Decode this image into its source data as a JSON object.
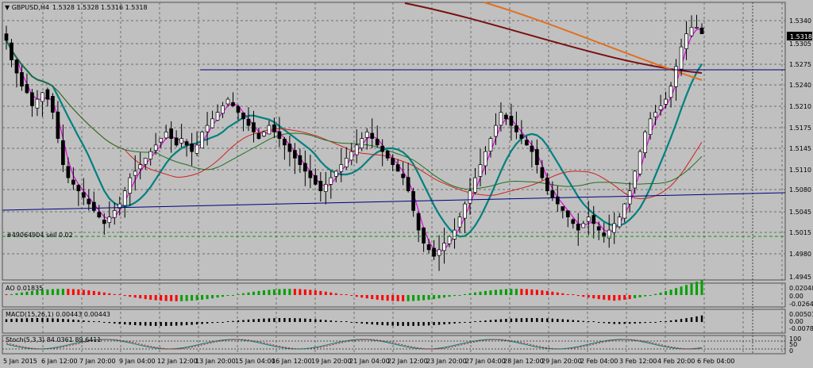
{
  "header": {
    "symbol_label": "GBPUSD,H4",
    "ohlc": "1.5328 1.5328 1.5316 1.5318"
  },
  "order_label": "#49064904 sell 0.02",
  "price_badge": "1.5318",
  "price_axis": [
    "1.5340",
    "1.5305",
    "1.5275",
    "1.5240",
    "1.5210",
    "1.5175",
    "1.5145",
    "1.5110",
    "1.5080",
    "1.5045",
    "1.5015",
    "1.4980",
    "1.4945"
  ],
  "ao": {
    "label": "AO 0.01835",
    "axis": [
      "0.02048",
      "0.00",
      "-0.02641"
    ]
  },
  "macd": {
    "label": "MACD(15,26,1) 0.00443 0.00443",
    "axis": [
      "0.00501",
      "0.00",
      "-0.00786"
    ]
  },
  "stoch": {
    "label": "Stoch(5,3,3) 84.0361 89.6411",
    "axis": [
      "100",
      "50",
      "0"
    ]
  },
  "time_axis": [
    "5 Jan 2015",
    "6 Jan 12:00",
    "7 Jan 20:00",
    "9 Jan 04:00",
    "12 Jan 12:00",
    "13 Jan 20:00",
    "15 Jan 04:00",
    "16 Jan 12:00",
    "19 Jan 20:00",
    "21 Jan 04:00",
    "22 Jan 12:00",
    "23 Jan 20:00",
    "27 Jan 04:00",
    "28 Jan 12:00",
    "29 Jan 20:00",
    "2 Feb 04:00",
    "3 Feb 12:00",
    "4 Feb 20:00",
    "6 Feb 04:00"
  ],
  "colors": {
    "background": "#c0c0c0",
    "grid": "#6e6e6e",
    "bull": "#ffffff",
    "bear": "#000000",
    "ma_fast": "#e600e6",
    "ma_teal": "#008080",
    "ma_red": "#d22020",
    "ma_green": "#207020",
    "ma_brown": "#7a0f0f",
    "ma_orange": "#e07020",
    "trend_line": "#000080",
    "ao_up": "#00a000",
    "ao_down": "#ff0000"
  },
  "chart_data": {
    "type": "candlestick",
    "price_range": [
      1.4945,
      1.5345
    ],
    "closes": [
      1.531,
      1.528,
      1.526,
      1.524,
      1.523,
      1.521,
      1.522,
      1.523,
      1.522,
      1.52,
      1.516,
      1.512,
      1.51,
      1.509,
      1.508,
      1.507,
      1.506,
      1.505,
      1.504,
      1.503,
      1.504,
      1.505,
      1.506,
      1.508,
      1.51,
      1.511,
      1.512,
      1.513,
      1.514,
      1.515,
      1.516,
      1.517,
      1.516,
      1.515,
      1.516,
      1.515,
      1.514,
      1.515,
      1.517,
      1.518,
      1.519,
      1.52,
      1.521,
      1.522,
      1.521,
      1.52,
      1.519,
      1.518,
      1.517,
      1.516,
      1.517,
      1.518,
      1.517,
      1.516,
      1.515,
      1.514,
      1.513,
      1.512,
      1.511,
      1.51,
      1.509,
      1.508,
      1.509,
      1.51,
      1.511,
      1.512,
      1.513,
      1.514,
      1.515,
      1.516,
      1.517,
      1.516,
      1.515,
      1.514,
      1.513,
      1.512,
      1.511,
      1.51,
      1.508,
      1.505,
      1.502,
      1.5,
      1.499,
      1.498,
      1.499,
      1.5,
      1.501,
      1.502,
      1.504,
      1.506,
      1.508,
      1.51,
      1.512,
      1.514,
      1.516,
      1.518,
      1.52,
      1.519,
      1.518,
      1.517,
      1.516,
      1.515,
      1.514,
      1.512,
      1.51,
      1.508,
      1.507,
      1.506,
      1.505,
      1.504,
      1.503,
      1.502,
      1.503,
      1.504,
      1.503,
      1.502,
      1.501,
      1.502,
      1.503,
      1.504,
      1.506,
      1.508,
      1.511,
      1.514,
      1.517,
      1.519,
      1.52,
      1.521,
      1.522,
      1.524,
      1.527,
      1.53,
      1.532,
      1.533,
      1.533,
      1.532
    ],
    "sell_level": 1.5015
  }
}
